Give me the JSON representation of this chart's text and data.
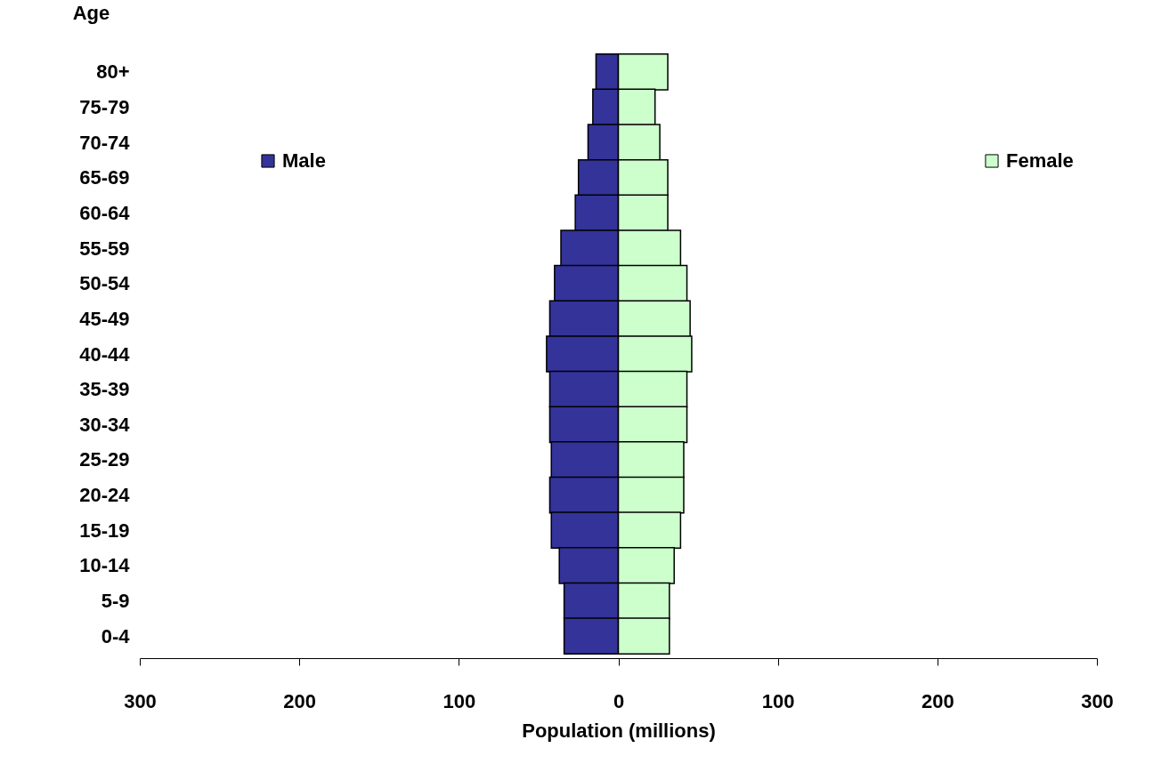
{
  "chart_data": {
    "type": "bar",
    "stacked": true,
    "orientation": "horizontal",
    "xlabel": "Population (millions)",
    "ylabel": "Age",
    "categories": [
      "80+",
      "75-79",
      "70-74",
      "65-69",
      "60-64",
      "55-59",
      "50-54",
      "45-49",
      "40-44",
      "35-39",
      "30-34",
      "25-29",
      "20-24",
      "15-19",
      "10-14",
      "5-9",
      "0-4"
    ],
    "series": [
      {
        "name": "Male",
        "color": "#333399",
        "values": [
          -14,
          -16,
          -19,
          -25,
          -27,
          -36,
          -40,
          -43,
          -45,
          -43,
          -43,
          -42,
          -43,
          -42,
          -37,
          -34,
          -34
        ]
      },
      {
        "name": "Female",
        "color": "#ccffcc",
        "values": [
          31,
          23,
          26,
          31,
          31,
          39,
          43,
          45,
          46,
          43,
          43,
          41,
          41,
          39,
          35,
          32,
          32
        ]
      }
    ],
    "xlim": [
      -300,
      300
    ],
    "xticks": [
      {
        "value": -300,
        "label": "300"
      },
      {
        "value": -200,
        "label": "200"
      },
      {
        "value": -100,
        "label": "100"
      },
      0,
      100,
      200,
      300
    ],
    "grid": false,
    "legend": "top"
  }
}
